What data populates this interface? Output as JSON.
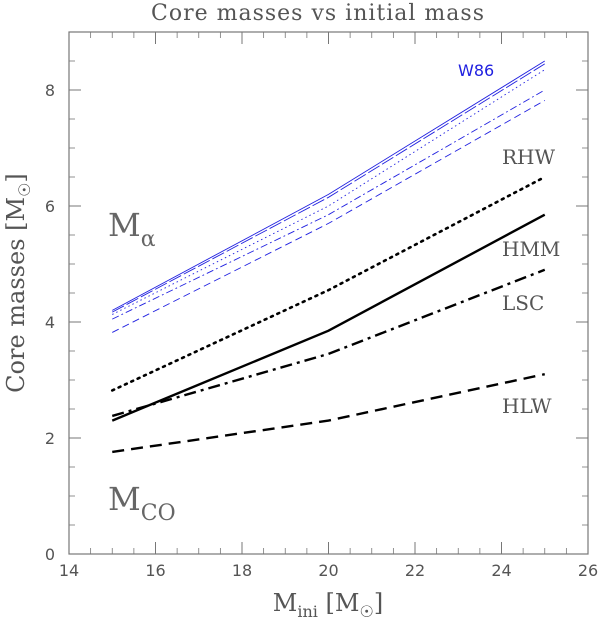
{
  "chart_data": {
    "type": "line",
    "title": "Core masses vs initial mass",
    "xlabel": {
      "main": "M",
      "sub": "ini",
      "unit": "[M",
      "unit_symbol": "☉",
      "unit_close": "]"
    },
    "ylabel": {
      "main": "Core masses [M",
      "unit_symbol": "☉",
      "unit_close": "]"
    },
    "xlim": [
      14,
      26
    ],
    "ylim": [
      0,
      9
    ],
    "x_ticks": [
      "14",
      "16",
      "18",
      "20",
      "22",
      "24",
      "26"
    ],
    "y_ticks": [
      "0",
      "2",
      "4",
      "6",
      "8"
    ],
    "x_tick_values": [
      14,
      16,
      18,
      20,
      22,
      24,
      26
    ],
    "y_tick_values": [
      0,
      2,
      4,
      6,
      8
    ],
    "grid": false,
    "group_labels": {
      "alpha": {
        "main": "M",
        "sub": "α"
      },
      "co": {
        "main": "M",
        "sub": "CO"
      }
    },
    "series": [
      {
        "name": "W86",
        "group": "alpha",
        "color": "#2020e0",
        "style": "solid",
        "x": [
          15,
          20,
          25
        ],
        "y": [
          4.2,
          6.2,
          8.5
        ]
      },
      {
        "name": "",
        "group": "alpha",
        "color": "#2020e0",
        "style": "longdash",
        "x": [
          15,
          20,
          25
        ],
        "y": [
          4.17,
          6.15,
          8.45
        ]
      },
      {
        "name": "",
        "group": "alpha",
        "color": "#2020e0",
        "style": "dotted",
        "x": [
          15,
          20,
          25
        ],
        "y": [
          4.13,
          6.0,
          8.35
        ]
      },
      {
        "name": "",
        "group": "alpha",
        "color": "#2020e0",
        "style": "dashdot",
        "x": [
          15,
          20,
          25
        ],
        "y": [
          4.05,
          5.85,
          8.0
        ]
      },
      {
        "name": "",
        "group": "alpha",
        "color": "#2020e0",
        "style": "dashed",
        "x": [
          15,
          20,
          25
        ],
        "y": [
          3.82,
          5.7,
          7.82
        ]
      },
      {
        "name": "RHW",
        "group": "co",
        "color": "#000000",
        "style": "dotted",
        "x": [
          15,
          20,
          25
        ],
        "y": [
          2.82,
          4.55,
          6.5
        ]
      },
      {
        "name": "HMM",
        "group": "co",
        "color": "#000000",
        "style": "solid",
        "x": [
          15,
          20,
          25
        ],
        "y": [
          2.3,
          3.85,
          5.85
        ]
      },
      {
        "name": "LSC",
        "group": "co",
        "color": "#000000",
        "style": "dashdot",
        "x": [
          15,
          20,
          25
        ],
        "y": [
          2.38,
          3.45,
          4.9
        ]
      },
      {
        "name": "HLW",
        "group": "co",
        "color": "#000000",
        "style": "dashed",
        "x": [
          15,
          20,
          25
        ],
        "y": [
          1.76,
          2.3,
          3.1
        ]
      }
    ]
  }
}
